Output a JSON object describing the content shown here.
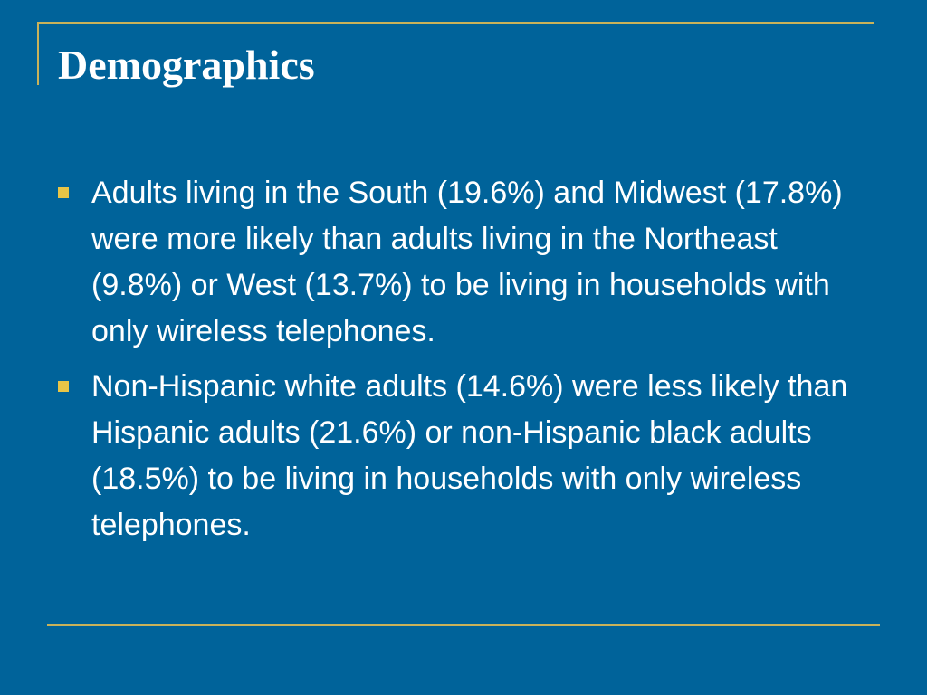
{
  "slide": {
    "title": "Demographics",
    "bullets": [
      {
        "icon": "square-bullet-icon",
        "text": "Adults living in the South (19.6%) and Midwest (17.8%) were more likely than adults living in the Northeast (9.8%) or West (13.7%) to be living in households with only wireless telephones."
      },
      {
        "icon": "square-bullet-icon",
        "text": "Non-Hispanic white adults (14.6%) were less likely than Hispanic adults (21.6%) or non-Hispanic black adults (18.5%) to be living in households with only wireless telephones."
      }
    ]
  },
  "colors": {
    "background": "#00639A",
    "accent_rule": "#C9B25A",
    "bullet": "#E8C547",
    "text": "#FFFFFF"
  }
}
